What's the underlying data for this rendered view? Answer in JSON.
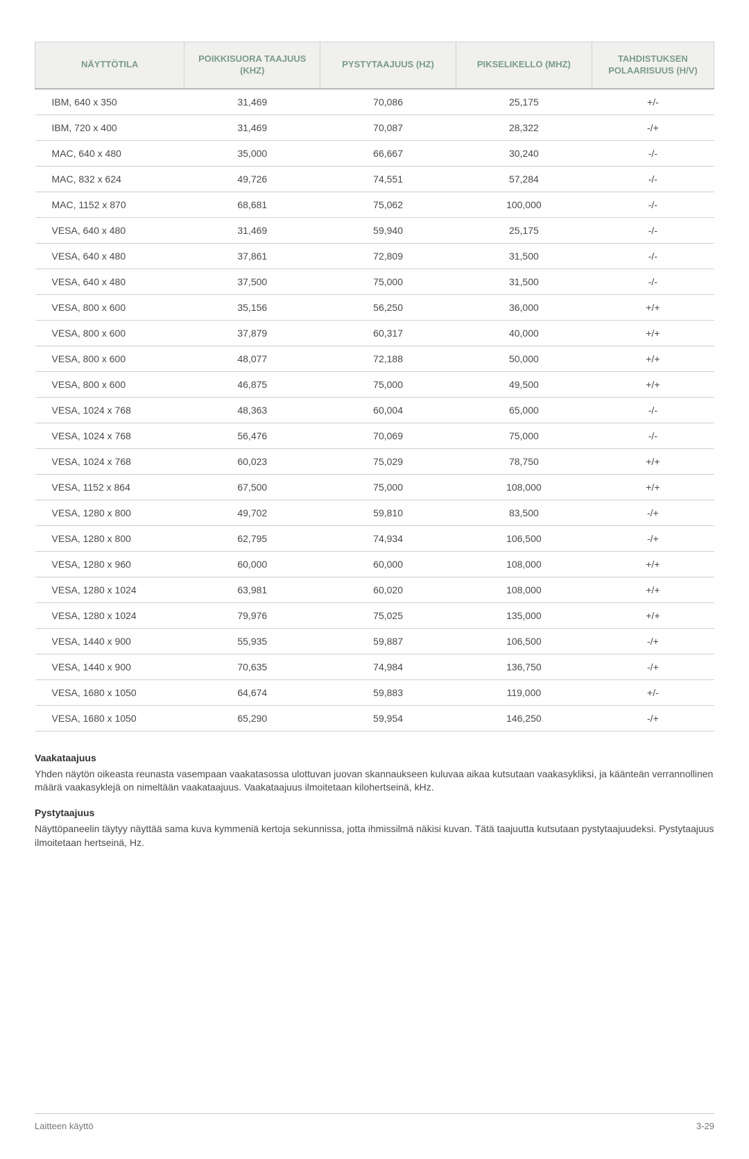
{
  "table": {
    "columns": [
      "NÄYTTÖTILA",
      "POIKKISUORA TAAJUUS (KHZ)",
      "PYSTYTAAJUUS (HZ)",
      "PIKSELIKELLO (MHZ)",
      "TAHDISTUKSEN POLAARISUUS (H/V)"
    ],
    "rows": [
      [
        "IBM, 640 x 350",
        "31,469",
        "70,086",
        "25,175",
        "+/-"
      ],
      [
        "IBM, 720 x 400",
        "31,469",
        "70,087",
        "28,322",
        "-/+"
      ],
      [
        "MAC, 640 x 480",
        "35,000",
        "66,667",
        "30,240",
        "-/-"
      ],
      [
        "MAC, 832 x 624",
        "49,726",
        "74,551",
        "57,284",
        "-/-"
      ],
      [
        "MAC, 1152 x 870",
        "68,681",
        "75,062",
        "100,000",
        "-/-"
      ],
      [
        "VESA, 640 x 480",
        "31,469",
        "59,940",
        "25,175",
        "-/-"
      ],
      [
        "VESA, 640 x 480",
        "37,861",
        "72,809",
        "31,500",
        "-/-"
      ],
      [
        "VESA, 640 x 480",
        "37,500",
        "75,000",
        "31,500",
        "-/-"
      ],
      [
        "VESA, 800 x 600",
        "35,156",
        "56,250",
        "36,000",
        "+/+"
      ],
      [
        "VESA, 800 x 600",
        "37,879",
        "60,317",
        "40,000",
        "+/+"
      ],
      [
        "VESA, 800 x 600",
        "48,077",
        "72,188",
        "50,000",
        "+/+"
      ],
      [
        "VESA, 800 x 600",
        "46,875",
        "75,000",
        "49,500",
        "+/+"
      ],
      [
        "VESA, 1024 x 768",
        "48,363",
        "60,004",
        "65,000",
        "-/-"
      ],
      [
        "VESA, 1024 x 768",
        "56,476",
        "70,069",
        "75,000",
        "-/-"
      ],
      [
        "VESA, 1024 x 768",
        "60,023",
        "75,029",
        "78,750",
        "+/+"
      ],
      [
        "VESA, 1152 x 864",
        "67,500",
        "75,000",
        "108,000",
        "+/+"
      ],
      [
        "VESA, 1280 x 800",
        "49,702",
        "59,810",
        "83,500",
        "-/+"
      ],
      [
        "VESA, 1280 x 800",
        "62,795",
        "74,934",
        "106,500",
        "-/+"
      ],
      [
        "VESA, 1280 x 960",
        "60,000",
        "60,000",
        "108,000",
        "+/+"
      ],
      [
        "VESA, 1280 x 1024",
        "63,981",
        "60,020",
        "108,000",
        "+/+"
      ],
      [
        "VESA, 1280 x 1024",
        "79,976",
        "75,025",
        "135,000",
        "+/+"
      ],
      [
        "VESA, 1440 x 900",
        "55,935",
        "59,887",
        "106,500",
        "-/+"
      ],
      [
        "VESA, 1440 x 900",
        "70,635",
        "74,984",
        "136,750",
        "-/+"
      ],
      [
        "VESA, 1680 x 1050",
        "64,674",
        "59,883",
        "119,000",
        "+/-"
      ],
      [
        "VESA, 1680 x 1050",
        "65,290",
        "59,954",
        "146,250",
        "-/+"
      ]
    ],
    "header_bg": "#f0f0ee",
    "header_color": "#7a9b8e",
    "border_color": "#d0d0d0",
    "text_color": "#4a4a4a",
    "col_widths": [
      "22%",
      "20%",
      "20%",
      "20%",
      "18%"
    ]
  },
  "sections": [
    {
      "title": "Vaakataajuus",
      "text": "Yhden näytön oikeasta reunasta vasempaan vaakatasossa ulottuvan juovan skannaukseen kuluvaa aikaa kutsutaan vaakasykliksi, ja käänteän verrannollinen määrä vaakasyklejä on nimeltään vaakataajuus. Vaakataajuus ilmoitetaan kilohertseinä, kHz."
    },
    {
      "title": "Pystytaajuus",
      "text": "Näyttöpaneelin täytyy näyttää sama kuva kymmeniä kertoja sekunnissa, jotta ihmissilmä näkisi kuvan. Tätä taajuutta kutsutaan pystytaajuudeksi. Pystytaajuus ilmoitetaan hertseinä, Hz."
    }
  ],
  "footer": {
    "left": "Laitteen käyttö",
    "right": "3-29"
  }
}
